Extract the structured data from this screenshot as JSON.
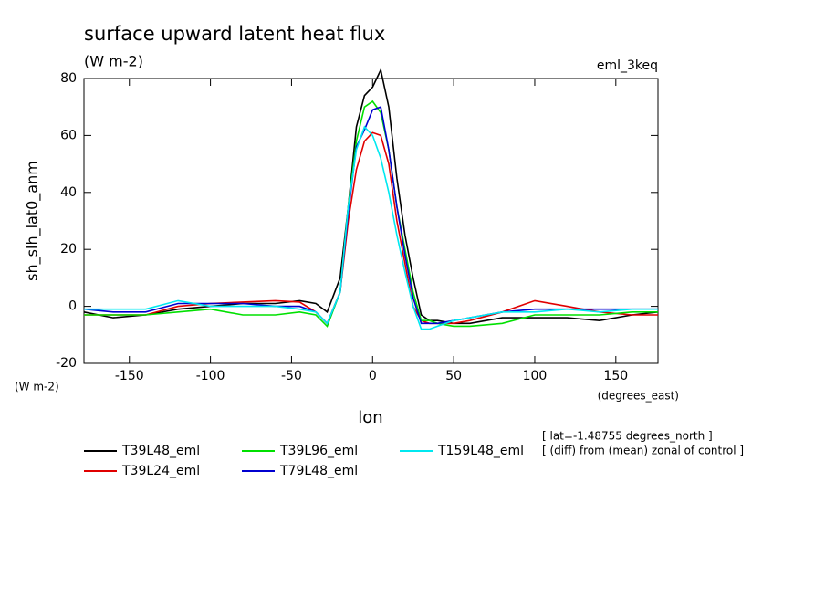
{
  "chart_data": {
    "type": "line",
    "title": "surface upward latent heat flux",
    "subtitle": "(W m-2)",
    "annotation_right": "eml_3keq",
    "y_label": "sh_slh_lat0_anm",
    "y_units": "(W m-2)",
    "x_label": "lon",
    "x_units": "(degrees_east)",
    "notes": [
      "[ lat=-1.48755 degrees_north ]",
      "[ (diff) from (mean) zonal of control ]"
    ],
    "x": [
      -178,
      -160,
      -140,
      -120,
      -100,
      -80,
      -60,
      -45,
      -35,
      -28,
      -20,
      -15,
      -10,
      -5,
      0,
      5,
      10,
      15,
      20,
      25,
      30,
      35,
      40,
      50,
      60,
      80,
      100,
      120,
      140,
      160,
      176
    ],
    "series": [
      {
        "name": "T39L48_eml",
        "color": "#000000",
        "values": [
          -2,
          -4,
          -3,
          -1,
          0,
          1,
          1,
          2,
          1,
          -2,
          10,
          35,
          63,
          74,
          77,
          83,
          70,
          45,
          25,
          10,
          -3,
          -5,
          -5,
          -6,
          -6,
          -4,
          -4,
          -4,
          -5,
          -3,
          -2
        ]
      },
      {
        "name": "T39L24_eml",
        "color": "#e00000",
        "values": [
          -3,
          -3,
          -3,
          0,
          1,
          1.5,
          2,
          1.5,
          -2,
          -6,
          5,
          30,
          48,
          58,
          61,
          60,
          50,
          30,
          15,
          0,
          -5,
          -6,
          -6,
          -6,
          -5,
          -2,
          2,
          0,
          -2,
          -3,
          -3
        ]
      },
      {
        "name": "T39L96_eml",
        "color": "#00e000",
        "values": [
          -3,
          -3,
          -3,
          -2,
          -1,
          -3,
          -3,
          -2,
          -3,
          -7,
          5,
          35,
          58,
          70,
          72,
          68,
          55,
          35,
          20,
          5,
          -5,
          -5,
          -6,
          -7,
          -7,
          -6,
          -3,
          -3,
          -3,
          -2,
          -2
        ]
      },
      {
        "name": "T79L48_eml",
        "color": "#0000d0",
        "values": [
          -1,
          -2,
          -2,
          1,
          1,
          1,
          0,
          0,
          -2,
          -6,
          5,
          33,
          56,
          62,
          69,
          70,
          55,
          35,
          18,
          3,
          -6,
          -6,
          -6,
          -5,
          -4,
          -2,
          -1,
          -1,
          -1,
          -1,
          -1
        ]
      },
      {
        "name": "T159L48_eml",
        "color": "#00e8f0",
        "values": [
          -1,
          -1,
          -1,
          2,
          0,
          0,
          0,
          -1,
          -2,
          -6,
          5,
          35,
          55,
          63,
          60,
          52,
          40,
          25,
          12,
          0,
          -8,
          -8,
          -7,
          -5,
          -4,
          -2,
          -2,
          -1,
          -2,
          -1,
          -1
        ]
      }
    ],
    "xlim": [
      -178,
      176
    ],
    "ylim": [
      -20,
      80
    ],
    "xticks": [
      -150,
      -100,
      -50,
      0,
      50,
      100,
      150
    ],
    "yticks": [
      -20,
      0,
      20,
      40,
      60,
      80
    ]
  }
}
